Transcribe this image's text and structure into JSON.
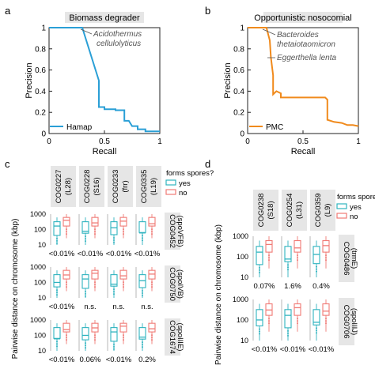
{
  "panels": {
    "a": {
      "letter": "a",
      "title": "Biomass degrader"
    },
    "b": {
      "letter": "b",
      "title": "Opportunistic nosocomial"
    },
    "c": {
      "letter": "c"
    },
    "d": {
      "letter": "d"
    }
  },
  "boxplots": {
    "ylabel": "Pairwise distance  on chromosome (kbp)",
    "yticks": [
      "1000",
      "100",
      "10"
    ],
    "legend_title": "forms spores?",
    "legend_yes": "yes",
    "legend_no": "no",
    "colors": {
      "yes": "#2fb3bf",
      "no": "#f07a75"
    },
    "c_columns": [
      {
        "cog": "COG0227",
        "sub": "(L28)"
      },
      {
        "cog": "COG0228",
        "sub": "(S16)"
      },
      {
        "cog": "COG0233",
        "sub": "(frr)"
      },
      {
        "cog": "COG0335",
        "sub": "(L19)"
      }
    ],
    "c_rows": [
      {
        "cog": "COG0452",
        "sub": "(spoVFB)",
        "pvals": [
          "<0.01%",
          "<0.01%",
          "<0.01%",
          "<0.01%"
        ]
      },
      {
        "cog": "COG0750",
        "sub": "(spoIVB)",
        "pvals": [
          "<0.01%",
          "n.s.",
          "n.s.",
          "n.s."
        ]
      },
      {
        "cog": "COG1674",
        "sub": "(spoIIIE)",
        "pvals": [
          "<0.01%",
          "0.06%",
          "<0.01%",
          "0.2%"
        ]
      }
    ],
    "d_columns": [
      {
        "cog": "COG0238",
        "sub": "(S18)"
      },
      {
        "cog": "COG0254",
        "sub": "(L31)"
      },
      {
        "cog": "COG0359",
        "sub": "(L9)"
      }
    ],
    "d_rows": [
      {
        "cog": "COG0486",
        "sub": "(trmE)",
        "pvals": [
          "0.07%",
          "1.6%",
          "0.4%"
        ]
      },
      {
        "cog": "COG0706",
        "sub": "(spoIIIJ)",
        "pvals": [
          "<0.01%",
          "<0.01%",
          "<0.01%"
        ]
      }
    ]
  },
  "chart_data": [
    {
      "type": "line",
      "title": "Biomass degrader",
      "xlabel": "Recall",
      "ylabel": "Precision",
      "xlim": [
        0,
        1
      ],
      "ylim": [
        0,
        1
      ],
      "xticks": [
        "0",
        "0.5",
        "1"
      ],
      "yticks": [
        "0",
        "0.2",
        "0.4",
        "0.6",
        "0.8",
        "1"
      ],
      "color": "#2a9fd6",
      "legend": "top-left bottom",
      "series": [
        {
          "name": "Hamap",
          "x": [
            0,
            0.3,
            0.45,
            0.45,
            0.5,
            0.5,
            0.6,
            0.6,
            0.68,
            0.68,
            0.72,
            0.75,
            0.8,
            0.8,
            0.87,
            0.87,
            0.95,
            1.0
          ],
          "y": [
            1.0,
            1.0,
            0.5,
            0.25,
            0.25,
            0.23,
            0.23,
            0.22,
            0.22,
            0.12,
            0.12,
            0.07,
            0.07,
            0.04,
            0.04,
            0.02,
            0.02,
            0.02
          ]
        }
      ],
      "annotations": [
        "Acidothermus",
        "cellulolyticus"
      ]
    },
    {
      "type": "line",
      "title": "Opportunistic nosocomial",
      "xlabel": "Recall",
      "ylabel": "Precision",
      "xlim": [
        0,
        1
      ],
      "ylim": [
        0,
        1
      ],
      "xticks": [
        "0",
        "0.5",
        "1"
      ],
      "yticks": [
        "0",
        "0.2",
        "0.4",
        "0.6",
        "0.8",
        "1"
      ],
      "color": "#f08a1c",
      "series": [
        {
          "name": "PMC",
          "x": [
            0,
            0.17,
            0.2,
            0.21,
            0.23,
            0.23,
            0.26,
            0.3,
            0.3,
            0.7,
            0.72,
            0.72,
            0.78,
            0.85,
            0.9,
            0.95,
            1.0
          ],
          "y": [
            1.0,
            1.0,
            0.88,
            0.72,
            0.55,
            0.37,
            0.4,
            0.38,
            0.34,
            0.34,
            0.32,
            0.13,
            0.11,
            0.1,
            0.08,
            0.08,
            0.07
          ]
        }
      ],
      "annotations": [
        "Bacteroides",
        "thetaiotaomicron",
        "Eggerthella lenta"
      ]
    }
  ]
}
